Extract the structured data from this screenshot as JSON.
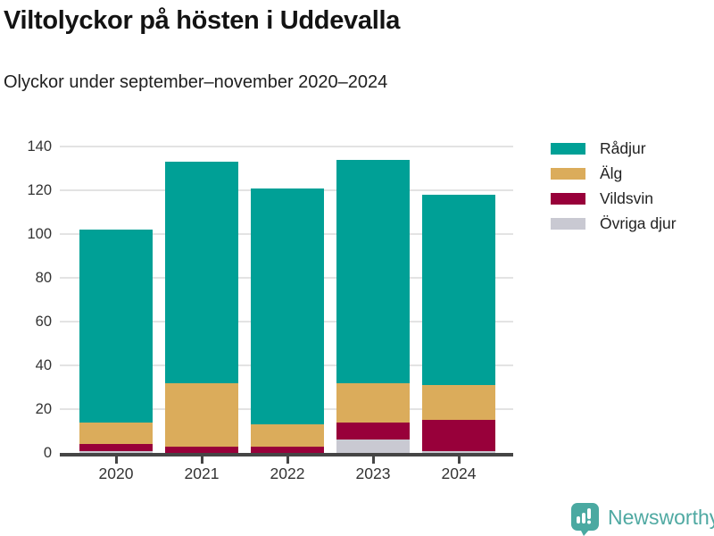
{
  "chart_data": {
    "type": "bar",
    "stacked": true,
    "title": "Viltolyckor på hösten i Uddevalla",
    "subtitle": "Olyckor under september–november 2020–2024",
    "categories": [
      "2020",
      "2021",
      "2022",
      "2023",
      "2024"
    ],
    "series": [
      {
        "name": "Rådjur",
        "color": "#00a096",
        "values": [
          88,
          101,
          108,
          102,
          87
        ]
      },
      {
        "name": "Älg",
        "color": "#dbac5b",
        "values": [
          10,
          29,
          10,
          18,
          16
        ]
      },
      {
        "name": "Vildsvin",
        "color": "#98003a",
        "values": [
          3,
          3,
          3,
          8,
          14
        ]
      },
      {
        "name": "Övriga djur",
        "color": "#c9c9d2",
        "values": [
          1,
          0,
          0,
          6,
          1
        ]
      }
    ],
    "totals": [
      102,
      133,
      121,
      134,
      118
    ],
    "xlabel": "",
    "ylabel": "",
    "ylim": [
      0,
      140
    ],
    "y_ticks": [
      0,
      20,
      40,
      60,
      80,
      100,
      120,
      140
    ],
    "grid": "horizontal",
    "legend_position": "right",
    "stack_order_bottom_to_top": [
      "Övriga djur",
      "Vildsvin",
      "Älg",
      "Rådjur"
    ]
  },
  "footer": {
    "brand": "Newsworthy",
    "brand_color": "#4fa9a2"
  }
}
